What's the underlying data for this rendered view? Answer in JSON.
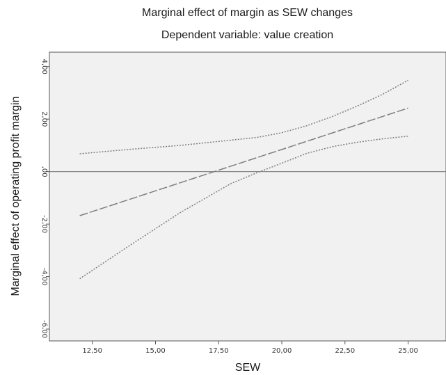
{
  "chart_data": {
    "type": "line",
    "title": "Marginal effect of margin as SEW changes",
    "subtitle": "Dependent variable: value creation",
    "xlabel": "SEW",
    "ylabel": "Marginal effect of operating profit margin",
    "xlim": [
      10.8,
      26.5
    ],
    "ylim": [
      -6.45,
      4.55
    ],
    "x_ticks": [
      12.5,
      15,
      17.5,
      20,
      22.5,
      25
    ],
    "x_tick_labels": [
      "12,50",
      "15,00",
      "17,50",
      "20,00",
      "22,50",
      "25,00"
    ],
    "y_ticks": [
      4,
      2,
      0,
      -2,
      -4,
      -6
    ],
    "y_tick_labels": [
      "4,00",
      "2,00",
      ",00",
      "-2,00",
      "-4,00",
      "-6,00"
    ],
    "reference_line_y": 0,
    "grid": false,
    "background": "#f0f1f0",
    "line_color": "#7d7d7d",
    "series": [
      {
        "style": "dotted",
        "x": [
          12,
          14,
          16,
          18,
          19,
          20,
          21,
          22,
          23,
          24,
          25
        ],
        "y": [
          0.68,
          0.85,
          1.0,
          1.2,
          1.3,
          1.48,
          1.75,
          2.1,
          2.5,
          2.95,
          3.48
        ]
      },
      {
        "style": "dashed",
        "x": [
          12,
          25
        ],
        "y": [
          -1.68,
          2.42
        ]
      },
      {
        "style": "dotted",
        "x": [
          12,
          14,
          16,
          18,
          19,
          20,
          21,
          22,
          23,
          24,
          25
        ],
        "y": [
          -4.08,
          -2.8,
          -1.55,
          -0.45,
          -0.05,
          0.32,
          0.7,
          0.95,
          1.12,
          1.25,
          1.35
        ]
      }
    ]
  }
}
